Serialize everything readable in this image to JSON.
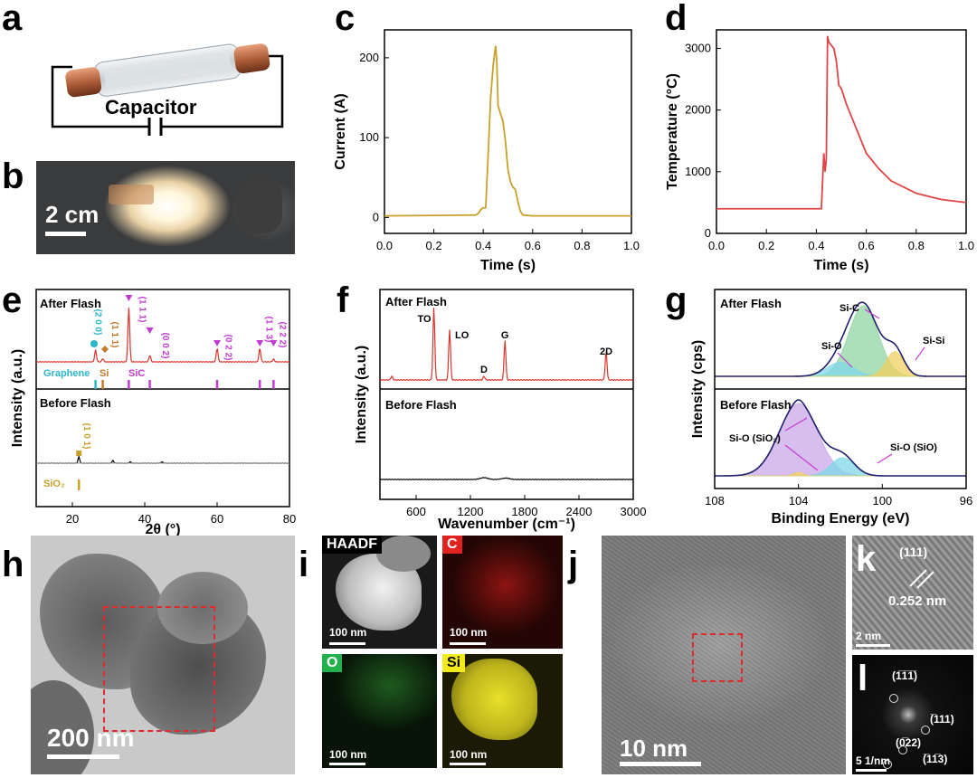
{
  "panels": {
    "a": {
      "label": "a",
      "capacitor_label": "Capacitor"
    },
    "b": {
      "label": "b",
      "scale": "2 cm"
    },
    "c": {
      "label": "c"
    },
    "d": {
      "label": "d"
    },
    "e": {
      "label": "e",
      "top_title": "After Flash",
      "bottom_title": "Before Flash",
      "peaks_top": [
        "(2 0 0)",
        "(1 1 1)",
        "(1 1 1)",
        "(0 0 2)",
        "(0 2 2)",
        "(1 1 3)",
        "(2 2 2)"
      ],
      "ref_top": [
        "Graphene",
        "Si",
        "SiC"
      ],
      "peak_bottom": "(1 0 1)",
      "ref_bottom": "SiO₂"
    },
    "f": {
      "label": "f",
      "top_title": "After Flash",
      "bottom_title": "Before Flash",
      "bands": [
        "TO",
        "LO",
        "D",
        "G",
        "2D"
      ]
    },
    "g": {
      "label": "g",
      "top_title": "After Flash",
      "bottom_title": "Before Flash",
      "top_peaks": [
        "Si-C",
        "Si-O",
        "Si-Si"
      ],
      "bottom_peaks": [
        "Si-O (SiO₂)",
        "Si-O (SiO)"
      ]
    },
    "h": {
      "label": "h",
      "scale": "200 nm"
    },
    "i": {
      "label": "i",
      "maps": [
        {
          "name": "HAADF",
          "scale": "100 nm",
          "color": "#ffffff"
        },
        {
          "name": "C",
          "scale": "100 nm",
          "color": "#e0231e"
        },
        {
          "name": "O",
          "scale": "100 nm",
          "color": "#22b14c"
        },
        {
          "name": "Si",
          "scale": "100 nm",
          "color": "#f2ea1a"
        }
      ]
    },
    "j": {
      "label": "j",
      "scale": "10 nm"
    },
    "k": {
      "label": "k",
      "plane": "(111)",
      "spacing": "0.252 nm",
      "scale": "2 nm"
    },
    "l": {
      "label": "l",
      "spots": [
        "(1̅1̅1̅)",
        "(̅111)",
        "(0̅22)",
        "(̅11̅3)"
      ],
      "scale": "5 1/nm"
    }
  },
  "chart_data": [
    {
      "id": "c",
      "type": "line",
      "xlabel": "Time (s)",
      "ylabel": "Current (A)",
      "xlim": [
        0,
        1.0
      ],
      "ylim": [
        -20,
        235
      ],
      "xticks": [
        0.0,
        0.2,
        0.4,
        0.6,
        0.8,
        1.0
      ],
      "yticks": [
        0,
        100,
        200
      ],
      "series": [
        {
          "color": "#c8a02a",
          "x": [
            0,
            0.37,
            0.38,
            0.39,
            0.4,
            0.41,
            0.42,
            0.43,
            0.44,
            0.45,
            0.455,
            0.46,
            0.47,
            0.48,
            0.49,
            0.5,
            0.51,
            0.52,
            0.53,
            0.54,
            0.55,
            0.56,
            0.6,
            0.8,
            1.0
          ],
          "y": [
            2,
            3,
            5,
            10,
            12,
            12,
            80,
            150,
            190,
            215,
            195,
            140,
            130,
            120,
            95,
            60,
            45,
            38,
            35,
            20,
            8,
            3,
            2,
            2,
            2
          ]
        }
      ]
    },
    {
      "id": "d",
      "type": "line",
      "xlabel": "Time (s)",
      "ylabel": "Temperature (°C)",
      "xlim": [
        0,
        1.0
      ],
      "ylim": [
        0,
        3300
      ],
      "xticks": [
        0.0,
        0.2,
        0.4,
        0.6,
        0.8,
        1.0
      ],
      "yticks": [
        0,
        1000,
        2000,
        3000
      ],
      "series": [
        {
          "color": "#e04545",
          "x": [
            0,
            0.42,
            0.43,
            0.435,
            0.44,
            0.445,
            0.45,
            0.46,
            0.47,
            0.48,
            0.49,
            0.5,
            0.52,
            0.54,
            0.56,
            0.58,
            0.6,
            0.65,
            0.7,
            0.75,
            0.8,
            0.9,
            1.0
          ],
          "y": [
            400,
            400,
            1300,
            1000,
            1200,
            3200,
            3100,
            3050,
            3000,
            2800,
            2400,
            2350,
            2100,
            1900,
            1700,
            1500,
            1300,
            1050,
            850,
            750,
            650,
            550,
            500
          ]
        }
      ]
    },
    {
      "id": "e",
      "type": "line",
      "xlabel": "2θ (°)",
      "ylabel": "Intensity (a.u.)",
      "xlim": [
        10,
        80
      ],
      "xticks": [
        20,
        40,
        60,
        80
      ],
      "series": [
        {
          "name": "After Flash",
          "color": "#d9342b",
          "peaks": [
            [
              26.4,
              0.22
            ],
            [
              28.4,
              0.06
            ],
            [
              35.6,
              1.0
            ],
            [
              41.4,
              0.12
            ],
            [
              60.0,
              0.25
            ],
            [
              71.8,
              0.25
            ],
            [
              75.6,
              0.05
            ]
          ]
        },
        {
          "name": "Before Flash",
          "color": "#000000",
          "peaks": [
            [
              21.8,
              0.3
            ],
            [
              31.2,
              0.12
            ],
            [
              36.0,
              0.06
            ],
            [
              44.8,
              0.06
            ]
          ]
        }
      ]
    },
    {
      "id": "f",
      "type": "line",
      "xlabel": "Wavenumber (cm⁻¹)",
      "ylabel": "Intensity (a.u.)",
      "xlim": [
        200,
        3000
      ],
      "xticks": [
        600,
        1200,
        1800,
        2400,
        3000
      ],
      "series": [
        {
          "name": "After Flash",
          "color": "#d9342b",
          "peaks": [
            [
              796,
              1.0
            ],
            [
              970,
              0.7
            ],
            [
              1350,
              0.05
            ],
            [
              1582,
              0.55
            ],
            [
              2700,
              0.4
            ],
            [
              330,
              0.05
            ]
          ]
        },
        {
          "name": "Before Flash",
          "color": "#000000",
          "peaks": [
            [
              1350,
              0.04
            ],
            [
              1590,
              0.03
            ]
          ]
        }
      ]
    },
    {
      "id": "g",
      "type": "line",
      "xlabel": "Binding Energy (eV)",
      "ylabel": "Intensity (cps)",
      "xlim": [
        108,
        96
      ],
      "xticks": [
        108,
        104,
        100,
        96
      ],
      "series": [
        {
          "name": "After Flash",
          "components": [
            {
              "label": "Si-C",
              "center": 100.9,
              "height": 1.0,
              "width": 1.0,
              "color": "#8fd6a4"
            },
            {
              "label": "Si-O",
              "center": 102.0,
              "height": 0.2,
              "width": 0.9,
              "color": "#7fd8e8"
            },
            {
              "label": "Si-Si",
              "center": 99.4,
              "height": 0.35,
              "width": 0.6,
              "color": "#f0d060"
            }
          ]
        },
        {
          "name": "Before Flash",
          "components": [
            {
              "label": "Si-O (SiO₂)",
              "center": 104.0,
              "height": 1.0,
              "width": 1.3,
              "color": "#c9a8e8"
            },
            {
              "label": "Si-O (SiO)",
              "center": 101.9,
              "height": 0.25,
              "width": 0.8,
              "color": "#7fd8e8"
            },
            {
              "label": "",
              "center": 104.0,
              "height": 0.05,
              "width": 0.3,
              "color": "#f0d060"
            }
          ]
        }
      ]
    }
  ]
}
